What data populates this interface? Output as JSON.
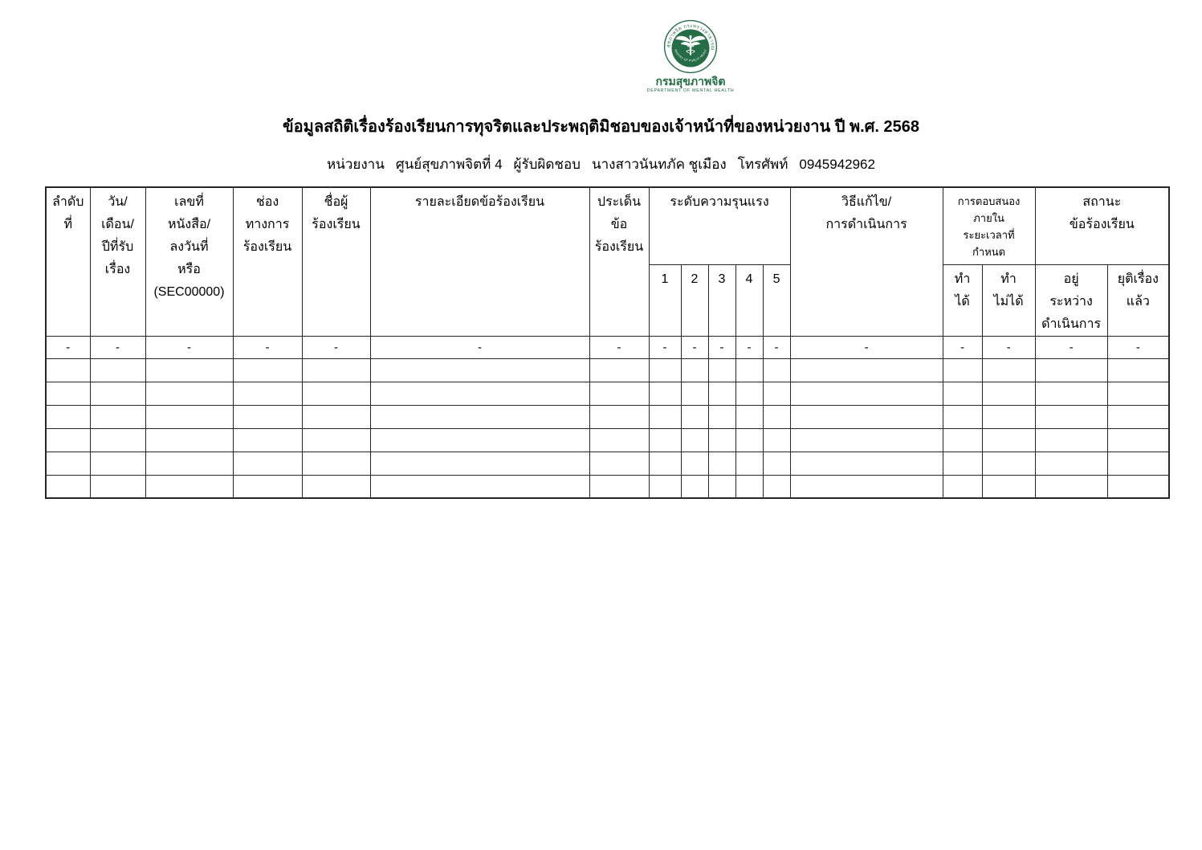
{
  "logo": {
    "seal": "department-of-mental-health-seal",
    "ring_text_thai": "กรมสุขภาพจิต กระทรวงสาธารณสุข",
    "disc_text_english": "MINISTRY OF PUBLIC HEALTH",
    "org_name_thai": "กรมสุขภาพจิต",
    "org_name_english": "DEPARTMENT OF MENTAL HEALTH",
    "brand_green": "#256d46"
  },
  "title": "ข้อมูลสถิติเรื่องร้องเรียนการทุจริตและประพฤติมิชอบของเจ้าหน้าที่ของหน่วยงาน ปี พ.ศ. 2568",
  "subtitle": {
    "unit_label": "หน่วยงาน",
    "unit_value": "ศูนย์สุขภาพจิตที่ 4",
    "responsible_label": "ผู้รับผิดชอบ",
    "responsible_value": "นางสาวนันทภัค ชูเมือง",
    "phone_label": "โทรศัพท์",
    "phone_value": "0945942962"
  },
  "table": {
    "headers": {
      "no": "ลำดับ\nที่",
      "date_received": "วัน/\nเดือน/\nปีที่รับ\nเรื่อง",
      "doc_number": "เลขที่\nหนังสือ/\nลงวันที่\nหรือ\n(SEC00000)",
      "channel": "ช่อง\nทางการ\nร้องเรียน",
      "complainant_name": "ชื่อผู้\nร้องเรียน",
      "details": "รายละเอียดข้อร้องเรียน",
      "issue": "ประเด็น\nข้อ\nร้องเรียน",
      "severity_group": "ระดับความรุนแรง",
      "severity_levels": [
        "1",
        "2",
        "3",
        "4",
        "5"
      ],
      "resolution": "วิธีแก้ไข/\nการดำเนินการ",
      "response_group": "การตอบสนอง\nภายใน\nระยะเวลาที่\nกำหนด",
      "response_yes": "ทำ\nได้",
      "response_no": "ทำ\nไม่ได้",
      "status_group": "สถานะ\nข้อร้องเรียน",
      "status_in_progress": "อยู่\nระหว่าง\nดำเนินการ",
      "status_closed": "ยุติเรื่อง\nแล้ว"
    },
    "rows": [
      [
        "-",
        "-",
        "-",
        "-",
        "-",
        "-",
        "-",
        "-",
        "-",
        "-",
        "-",
        "-",
        "-",
        "-",
        "-",
        "-",
        "-"
      ],
      [
        "",
        "",
        "",
        "",
        "",
        "",
        "",
        "",
        "",
        "",
        "",
        "",
        "",
        "",
        "",
        "",
        ""
      ],
      [
        "",
        "",
        "",
        "",
        "",
        "",
        "",
        "",
        "",
        "",
        "",
        "",
        "",
        "",
        "",
        "",
        ""
      ],
      [
        "",
        "",
        "",
        "",
        "",
        "",
        "",
        "",
        "",
        "",
        "",
        "",
        "",
        "",
        "",
        "",
        ""
      ],
      [
        "",
        "",
        "",
        "",
        "",
        "",
        "",
        "",
        "",
        "",
        "",
        "",
        "",
        "",
        "",
        "",
        ""
      ],
      [
        "",
        "",
        "",
        "",
        "",
        "",
        "",
        "",
        "",
        "",
        "",
        "",
        "",
        "",
        "",
        "",
        ""
      ],
      [
        "",
        "",
        "",
        "",
        "",
        "",
        "",
        "",
        "",
        "",
        "",
        "",
        "",
        "",
        "",
        "",
        ""
      ]
    ]
  }
}
